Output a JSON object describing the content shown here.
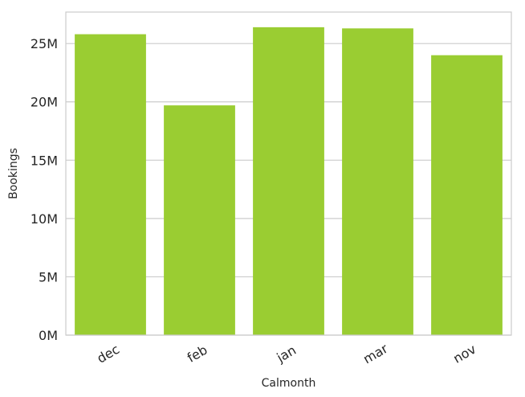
{
  "chart_data": {
    "type": "bar",
    "categories": [
      "dec",
      "feb",
      "jan",
      "mar",
      "nov"
    ],
    "values": [
      25800000,
      19700000,
      26400000,
      26300000,
      24000000
    ],
    "xlabel": "Calmonth",
    "ylabel": "Bookings",
    "ylim": [
      0,
      27700000
    ],
    "yticks": [
      0,
      5000000,
      10000000,
      15000000,
      20000000,
      25000000
    ],
    "ytick_labels": [
      "0M",
      "5M",
      "10M",
      "15M",
      "20M",
      "25M"
    ],
    "bar_color": "#9acd32",
    "grid": true,
    "frame_color": "#cccccc",
    "grid_color": "#cccccc"
  }
}
